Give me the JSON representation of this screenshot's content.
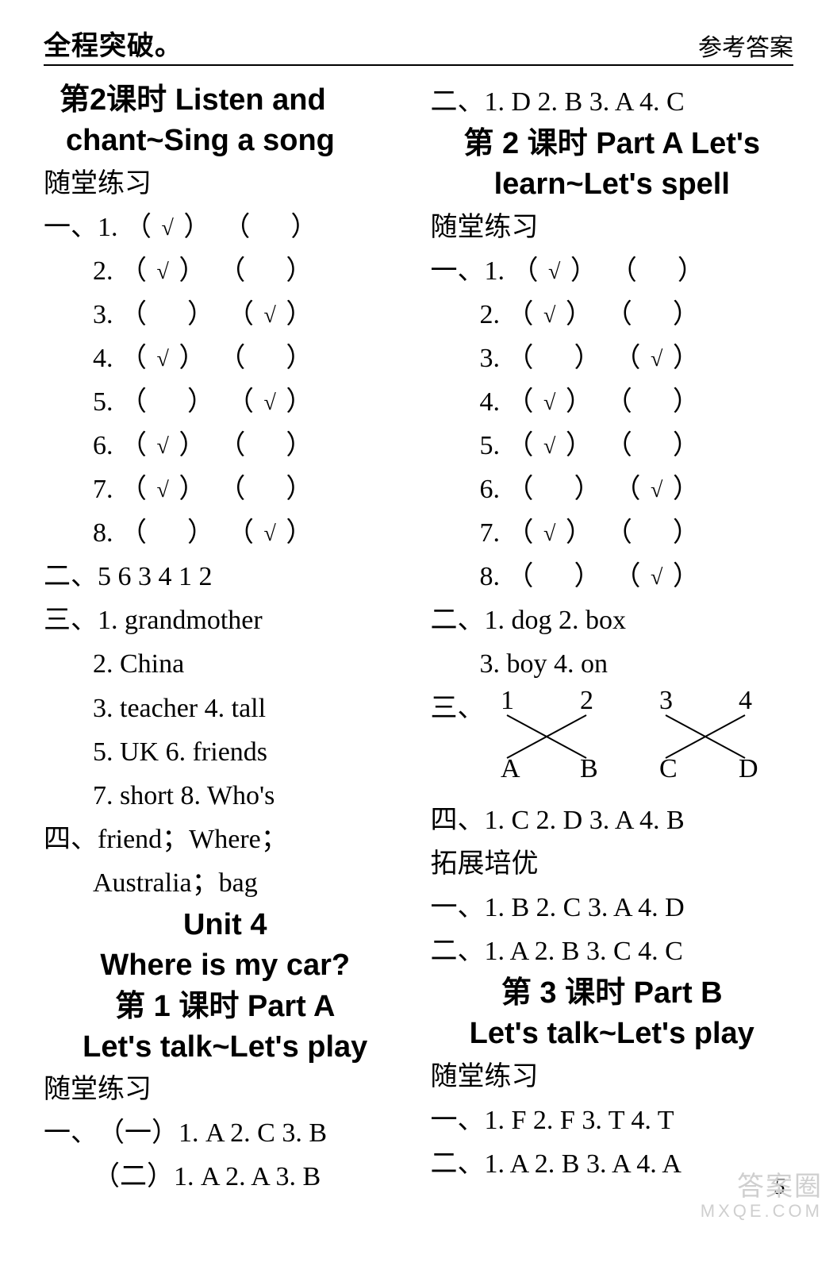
{
  "topbar": {
    "left": "全程突破。",
    "right": "参考答案"
  },
  "left_col": {
    "h1a": "第2课时   Listen and",
    "h1b": "chant~Sing a song",
    "sui": "随堂练习",
    "sec1_label": "一、",
    "sec1": [
      {
        "n": "1.",
        "a": "√",
        "b": ""
      },
      {
        "n": "2.",
        "a": "√",
        "b": ""
      },
      {
        "n": "3.",
        "a": "",
        "b": "√"
      },
      {
        "n": "4.",
        "a": "√",
        "b": ""
      },
      {
        "n": "5.",
        "a": "",
        "b": "√"
      },
      {
        "n": "6.",
        "a": "√",
        "b": ""
      },
      {
        "n": "7.",
        "a": "√",
        "b": ""
      },
      {
        "n": "8.",
        "a": "",
        "b": "√"
      }
    ],
    "sec2_label": "二、",
    "sec2_row": "5   6   3   4   1   2",
    "sec3_label": "三、",
    "sec3": [
      "1. grandmother",
      "2. China",
      "3. teacher   4. tall",
      "5. UK   6. friends",
      "7. short   8. Who's"
    ],
    "sec4_label": "四、",
    "sec4_line1": "friend；Where；",
    "sec4_line2": "Australia；bag",
    "unit_title": "Unit 4",
    "unit_sub": "Where is my car?",
    "u4_l1a": "第 1 课时   Part A",
    "u4_l1b": "Let's talk~Let's play",
    "sui2": "随堂练习",
    "sec1b_label": "一、",
    "sec1b_row1": "（一）1. A   2. C   3. B",
    "sec1b_row2": "（二）1. A   2. A   3. B"
  },
  "right_col": {
    "sec2_label": "二、",
    "sec2_row": "1. D   2. B   3. A   4. C",
    "l2a": "第 2 课时   Part A  Let's",
    "l2b": "learn~Let's spell",
    "sui": "随堂练习",
    "sec1_label": "一、",
    "sec1": [
      {
        "n": "1.",
        "a": "√",
        "b": ""
      },
      {
        "n": "2.",
        "a": "√",
        "b": ""
      },
      {
        "n": "3.",
        "a": "",
        "b": "√"
      },
      {
        "n": "4.",
        "a": "√",
        "b": ""
      },
      {
        "n": "5.",
        "a": "√",
        "b": ""
      },
      {
        "n": "6.",
        "a": "",
        "b": "√"
      },
      {
        "n": "7.",
        "a": "√",
        "b": ""
      },
      {
        "n": "8.",
        "a": "",
        "b": "√"
      }
    ],
    "sec2b_label": "二、",
    "sec2b_row1": "1. dog   2. box",
    "sec2b_row2": "3. boy   4. on",
    "sec3_label": "三、",
    "match": {
      "top": [
        "1",
        "2",
        "3",
        "4"
      ],
      "bottom": [
        "A",
        "B",
        "C",
        "D"
      ],
      "edges": [
        [
          0,
          1
        ],
        [
          1,
          0
        ],
        [
          2,
          3
        ],
        [
          3,
          2
        ]
      ],
      "line_color": "#000000",
      "line_width": 2
    },
    "sec4_label": "四、",
    "sec4_row": "1. C   2. D   3. A   4. B",
    "tuozhan": "拓展培优",
    "tz1_label": "一、",
    "tz1_row": "1. B   2. C   3. A   4. D",
    "tz2_label": "二、",
    "tz2_row": "1. A   2. B   3. C   4. C",
    "l3a": "第 3 课时   Part B",
    "l3b": "Let's talk~Let's play",
    "sui2": "随堂练习",
    "s2_sec1_label": "一、",
    "s2_sec1_row": "1. F   2. F   3. T   4. T",
    "s2_sec2_label": "二、",
    "s2_sec2_row": "1. A   2. B   3. A   4. A"
  },
  "pagenum": "5",
  "watermark": {
    "cn": "答案圈",
    "en": "MXQE.COM"
  }
}
